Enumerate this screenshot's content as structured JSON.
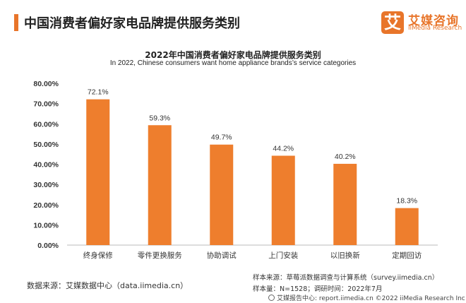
{
  "theme": {
    "accent": "#E8752A",
    "bar_color": "#EE7E2D"
  },
  "header": {
    "title": "中国消费者偏好家电品牌提供服务类别"
  },
  "logo": {
    "mark": "艾",
    "name_cn": "艾媒咨询",
    "name_en": "iiMedia Research"
  },
  "chart_data": {
    "type": "bar",
    "title": "2022年中国消费者偏好家电品牌提供服务类别",
    "subtitle": "In 2022, Chinese consumers want home appliance brands’s service categories",
    "categories": [
      "终身保修",
      "零件更换服务",
      "协助调试",
      "上门安装",
      "以旧换新",
      "定期回访"
    ],
    "values": [
      72.1,
      59.3,
      49.7,
      44.2,
      40.2,
      18.3
    ],
    "value_labels": [
      "72.1%",
      "59.3%",
      "49.7%",
      "44.2%",
      "40.2%",
      "18.3%"
    ],
    "unit": "%",
    "ylim": [
      0,
      80
    ],
    "yticks": [
      "0.00%",
      "10.00%",
      "20.00%",
      "30.00%",
      "40.00%",
      "50.00%",
      "60.00%",
      "70.00%",
      "80.00%"
    ],
    "grid": false,
    "legend": "none"
  },
  "footer": {
    "source_left": "数据来源：艾媒数据中心（data.iimedia.cn）",
    "source_right": "样本来源：草莓派数据调查与计算系统（survey.iimedia.cn）",
    "sample_info": "样本量：N=1528；调研时间：2022年7月",
    "credit": "艾媒报告中心: report.iimedia.cn  ©2022  iiMedia Research  Inc"
  }
}
